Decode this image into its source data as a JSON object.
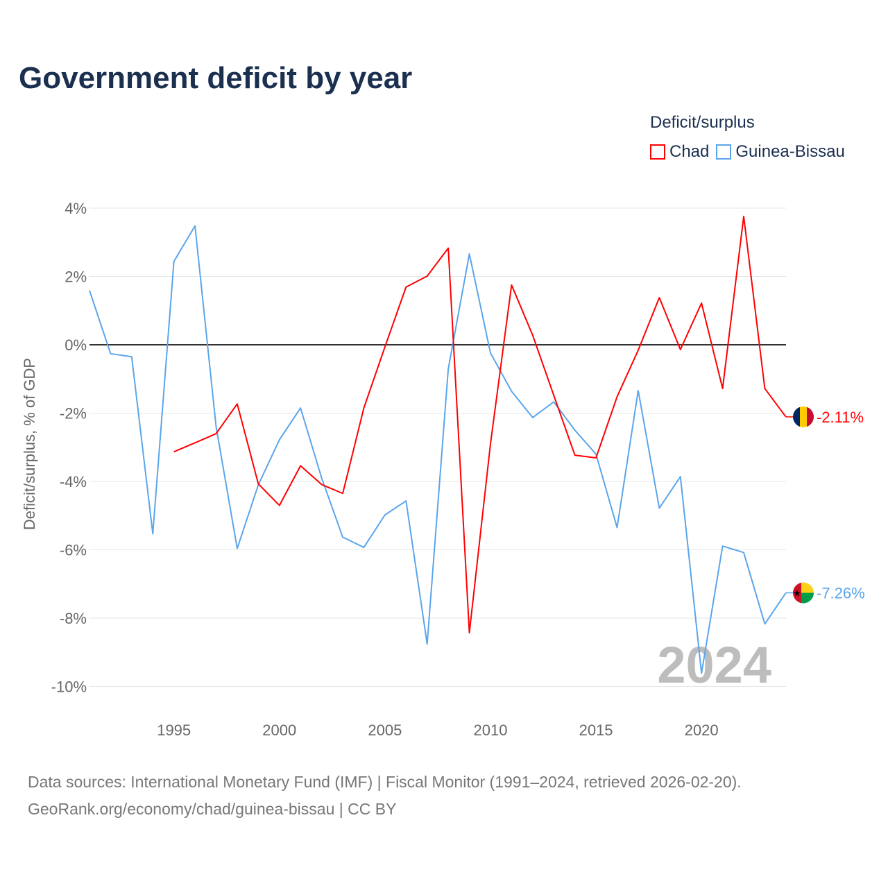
{
  "title": "Government deficit by year",
  "legend": {
    "title": "Deficit/surplus",
    "items": [
      {
        "label": "Chad",
        "color": "#ff0000"
      },
      {
        "label": "Guinea-Bissau",
        "color": "#5aa5ec"
      }
    ]
  },
  "source": {
    "line1": "Data sources: International Monetary Fund (IMF) | Fiscal Monitor (1991–2024, retrieved 2026-02-20).",
    "line2": "GeoRank.org/economy/chad/guinea-bissau | CC BY"
  },
  "chart_data": {
    "type": "line",
    "title": "Government deficit by year",
    "ylabel": "Deficit/surplus, % of GDP",
    "xlabel": "",
    "xlim": [
      1991,
      2024
    ],
    "ylim": [
      -10,
      4
    ],
    "yticks": [
      4,
      2,
      0,
      -2,
      -4,
      -6,
      -8,
      -10
    ],
    "ytick_labels": [
      "4%",
      "2%",
      "0%",
      "-2%",
      "-4%",
      "-6%",
      "-8%",
      "-10%"
    ],
    "xticks": [
      1995,
      2000,
      2005,
      2010,
      2015,
      2020
    ],
    "xtick_labels": [
      "1995",
      "2000",
      "2005",
      "2010",
      "2015",
      "2020"
    ],
    "year_label": "2024",
    "series": [
      {
        "name": "Chad",
        "color": "#ff0000",
        "end_label": "-2.11%",
        "start": 1995,
        "values": [
          -3.13,
          -2.87,
          -2.6,
          -1.73,
          -4.07,
          -4.7,
          -3.54,
          -4.09,
          -4.35,
          -1.85,
          -0.06,
          1.69,
          2.01,
          2.83,
          -8.43,
          -2.9,
          1.75,
          0.28,
          -1.48,
          -3.23,
          -3.31,
          -1.52,
          -0.16,
          1.38,
          -0.14,
          1.22,
          -1.28,
          3.76,
          -1.28,
          -2.11
        ]
      },
      {
        "name": "Guinea-Bissau",
        "color": "#5aa5ec",
        "end_label": "-7.26%",
        "start": 1991,
        "values": [
          1.59,
          -0.26,
          -0.35,
          -5.53,
          2.44,
          3.48,
          -2.4,
          -5.96,
          -4.1,
          -2.78,
          -1.85,
          -3.9,
          -5.63,
          -5.93,
          -4.98,
          -4.57,
          -8.76,
          -0.71,
          2.66,
          -0.24,
          -1.36,
          -2.13,
          -1.67,
          -2.5,
          -3.2,
          -5.35,
          -1.34,
          -4.78,
          -3.86,
          -9.61,
          -5.89,
          -6.08,
          -8.17,
          -7.26
        ]
      }
    ]
  }
}
